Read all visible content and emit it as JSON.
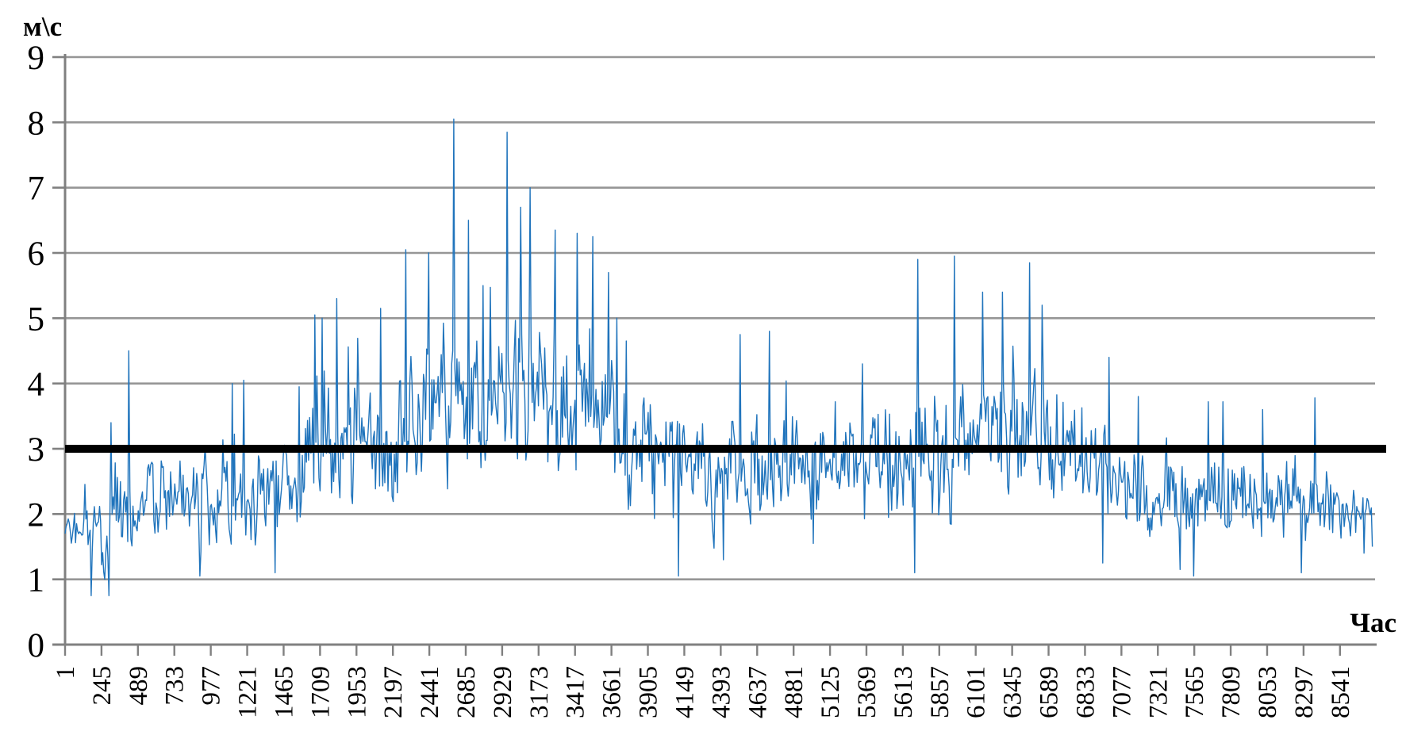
{
  "chart_data": {
    "type": "line",
    "title": "",
    "unit_label": "м\\с",
    "xlabel": "Час",
    "ylim": [
      0,
      9
    ],
    "y_ticks": [
      9,
      8,
      7,
      6,
      5,
      4,
      3,
      2,
      1,
      0
    ],
    "x_ticks": [
      1,
      245,
      489,
      733,
      977,
      1221,
      1465,
      1709,
      1953,
      2197,
      2441,
      2685,
      2929,
      3173,
      3417,
      3661,
      3905,
      4149,
      4393,
      4637,
      4881,
      5125,
      5369,
      5613,
      5857,
      6101,
      6345,
      6589,
      6833,
      7077,
      7321,
      7565,
      7809,
      8053,
      8297,
      8541
    ],
    "x_range_hours": [
      1,
      8760
    ],
    "grid": "horizontal-only",
    "legend": "none",
    "colors": {
      "series": "#2074BC",
      "mean_line": "#000000",
      "gridline": "#969696",
      "axis": "#808080",
      "text": "#000000",
      "background": "#ffffff"
    },
    "mean_line_value": 3.0,
    "series_description": "hourly wind speed, ~8760 points; values below given as readable envelope [hour, min, typical, max] plus notable extremes",
    "series_envelope": [
      [
        1,
        1.3,
        1.8,
        2.4
      ],
      [
        245,
        0.8,
        1.9,
        3.1
      ],
      [
        489,
        1.4,
        2.2,
        3.6
      ],
      [
        733,
        1.5,
        2.3,
        3.9
      ],
      [
        977,
        1.1,
        2.2,
        3.2
      ],
      [
        1221,
        1.3,
        2.3,
        3.9
      ],
      [
        1465,
        1.15,
        2.3,
        3.7
      ],
      [
        1709,
        1.5,
        2.8,
        5.0
      ],
      [
        1953,
        1.9,
        3.1,
        5.3
      ],
      [
        2197,
        1.9,
        3.3,
        5.3
      ],
      [
        2441,
        2.2,
        3.6,
        5.7
      ],
      [
        2685,
        2.0,
        3.8,
        6.0
      ],
      [
        2929,
        2.3,
        4.0,
        6.3
      ],
      [
        3173,
        2.2,
        3.9,
        6.1
      ],
      [
        3417,
        2.0,
        3.6,
        5.8
      ],
      [
        3661,
        1.8,
        3.3,
        5.2
      ],
      [
        3905,
        1.6,
        2.9,
        4.6
      ],
      [
        4149,
        1.2,
        2.7,
        4.0
      ],
      [
        4393,
        1.4,
        2.6,
        4.0
      ],
      [
        4637,
        1.7,
        2.9,
        4.7
      ],
      [
        4881,
        1.7,
        2.9,
        4.6
      ],
      [
        5125,
        1.6,
        2.8,
        4.2
      ],
      [
        5369,
        1.5,
        2.8,
        4.3
      ],
      [
        5613,
        1.4,
        2.9,
        4.6
      ],
      [
        5857,
        1.3,
        3.0,
        5.0
      ],
      [
        6101,
        1.8,
        3.2,
        5.2
      ],
      [
        6345,
        2.0,
        3.3,
        5.3
      ],
      [
        6589,
        1.9,
        3.2,
        5.1
      ],
      [
        6833,
        1.6,
        2.9,
        4.6
      ],
      [
        7077,
        1.3,
        2.5,
        4.0
      ],
      [
        7321,
        1.45,
        2.3,
        3.6
      ],
      [
        7565,
        1.2,
        2.2,
        3.5
      ],
      [
        7809,
        1.35,
        2.2,
        3.5
      ],
      [
        8053,
        1.4,
        2.2,
        3.4
      ],
      [
        8297,
        1.2,
        2.1,
        3.2
      ],
      [
        8541,
        1.35,
        2.1,
        3.3
      ],
      [
        8760,
        1.4,
        1.9,
        2.9
      ]
    ],
    "series_peaks": [
      [
        308,
        3.4
      ],
      [
        431,
        4.5
      ],
      [
        1122,
        4.0
      ],
      [
        1201,
        4.05
      ],
      [
        1568,
        3.95
      ],
      [
        1674,
        5.05
      ],
      [
        1723,
        5.0
      ],
      [
        1823,
        5.3
      ],
      [
        2116,
        5.15
      ],
      [
        2281,
        6.05
      ],
      [
        2434,
        6.0
      ],
      [
        2604,
        8.05
      ],
      [
        2700,
        6.5
      ],
      [
        2800,
        5.5
      ],
      [
        2961,
        7.85
      ],
      [
        3056,
        6.7
      ],
      [
        3115,
        7.0
      ],
      [
        3285,
        6.35
      ],
      [
        3430,
        6.3
      ],
      [
        3535,
        6.25
      ],
      [
        3641,
        5.7
      ],
      [
        3699,
        5.0
      ],
      [
        3763,
        4.65
      ],
      [
        4520,
        4.75
      ],
      [
        4720,
        4.8
      ],
      [
        5345,
        4.3
      ],
      [
        5714,
        5.9
      ],
      [
        5958,
        5.95
      ],
      [
        6144,
        5.4
      ],
      [
        6277,
        5.4
      ],
      [
        6463,
        5.85
      ],
      [
        6543,
        5.2
      ],
      [
        6995,
        4.4
      ],
      [
        7191,
        3.8
      ],
      [
        7660,
        3.72
      ],
      [
        7760,
        3.72
      ],
      [
        8026,
        3.6
      ],
      [
        8372,
        3.78
      ]
    ],
    "series_dips": [
      [
        175,
        0.75
      ],
      [
        292,
        0.75
      ],
      [
        904,
        1.05
      ],
      [
        1409,
        1.1
      ],
      [
        4108,
        1.05
      ],
      [
        4412,
        1.3
      ],
      [
        5010,
        1.55
      ],
      [
        5690,
        1.1
      ],
      [
        6950,
        1.25
      ],
      [
        7468,
        1.15
      ],
      [
        7563,
        1.05
      ],
      [
        8280,
        1.1
      ],
      [
        8700,
        1.4
      ]
    ]
  }
}
